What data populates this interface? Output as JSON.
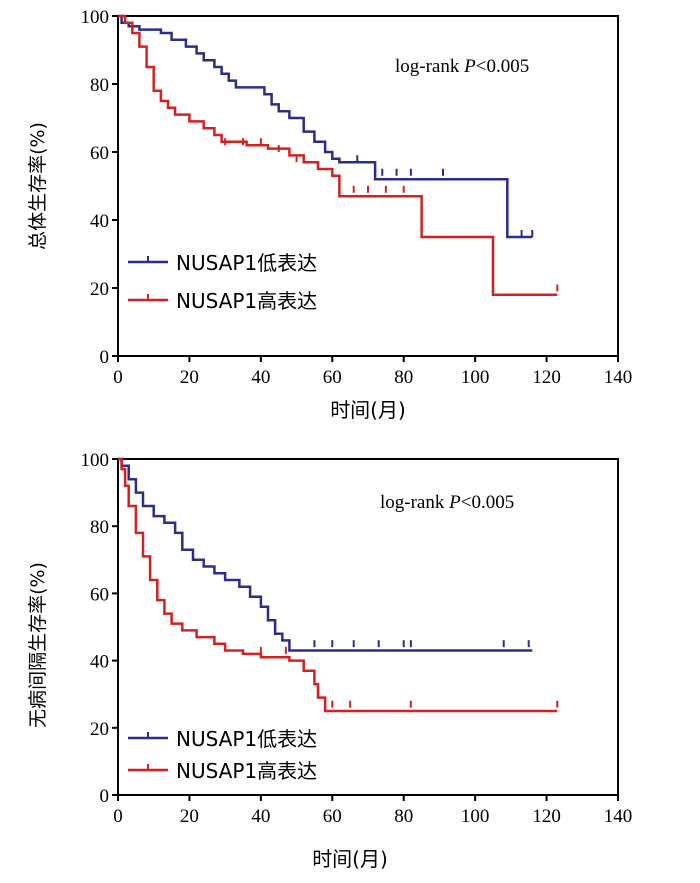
{
  "chart_data": [
    {
      "type": "line",
      "subtype": "kaplan-meier",
      "title": "",
      "xlabel": "时间(月)",
      "ylabel": "总体生存率(%)",
      "xlim": [
        0,
        140
      ],
      "ylim": [
        0,
        100
      ],
      "xticks": [
        0,
        20,
        40,
        60,
        80,
        100,
        120,
        140
      ],
      "yticks": [
        0,
        20,
        40,
        60,
        80,
        100
      ],
      "annotation": {
        "prefix": "log-rank ",
        "italic": "P",
        "suffix": "<0.005"
      },
      "legend_position": "bottom-left",
      "series": [
        {
          "name": "NUSAP1低表达",
          "color": "#2b2d8c",
          "steps": [
            [
              0,
              100
            ],
            [
              1,
              98
            ],
            [
              3,
              97
            ],
            [
              6,
              96
            ],
            [
              8,
              96
            ],
            [
              12,
              95
            ],
            [
              15,
              93
            ],
            [
              19,
              91
            ],
            [
              22,
              89
            ],
            [
              24,
              87
            ],
            [
              27,
              85
            ],
            [
              29,
              83
            ],
            [
              31,
              81
            ],
            [
              33,
              79
            ],
            [
              39,
              79
            ],
            [
              41,
              77
            ],
            [
              43,
              74
            ],
            [
              45,
              72
            ],
            [
              48,
              70
            ],
            [
              52,
              66
            ],
            [
              55,
              63
            ],
            [
              58,
              60
            ],
            [
              60,
              58
            ],
            [
              62,
              57
            ],
            [
              72,
              52
            ],
            [
              109,
              52
            ],
            [
              109,
              35
            ],
            [
              116,
              35
            ]
          ],
          "censors": [
            [
              67,
              57
            ],
            [
              72,
              53
            ],
            [
              74,
              53
            ],
            [
              78,
              53
            ],
            [
              82,
              53
            ],
            [
              91,
              53
            ],
            [
              113,
              35
            ],
            [
              116,
              35
            ]
          ]
        },
        {
          "name": "NUSAP1高表达",
          "color": "#d42020",
          "steps": [
            [
              0,
              100
            ],
            [
              2,
              98
            ],
            [
              4,
              95
            ],
            [
              6,
              91
            ],
            [
              8,
              85
            ],
            [
              10,
              78
            ],
            [
              12,
              75
            ],
            [
              14,
              73
            ],
            [
              16,
              71
            ],
            [
              20,
              69
            ],
            [
              24,
              67
            ],
            [
              27,
              65
            ],
            [
              29,
              63
            ],
            [
              36,
              62
            ],
            [
              42,
              61
            ],
            [
              48,
              59
            ],
            [
              52,
              57
            ],
            [
              56,
              55
            ],
            [
              60,
              53
            ],
            [
              62,
              47
            ],
            [
              85,
              47
            ],
            [
              85,
              35
            ],
            [
              105,
              35
            ],
            [
              105,
              18
            ],
            [
              123,
              18
            ]
          ],
          "censors": [
            [
              30,
              62
            ],
            [
              35,
              62
            ],
            [
              40,
              62
            ],
            [
              45,
              60
            ],
            [
              50,
              57
            ],
            [
              66,
              48
            ],
            [
              70,
              48
            ],
            [
              75,
              48
            ],
            [
              80,
              48
            ],
            [
              123,
              19
            ]
          ]
        }
      ]
    },
    {
      "type": "line",
      "subtype": "kaplan-meier",
      "title": "",
      "xlabel": "时间(月)",
      "ylabel": "无病间隔生存率(%)",
      "xlim": [
        0,
        140
      ],
      "ylim": [
        0,
        100
      ],
      "xticks": [
        0,
        20,
        40,
        60,
        80,
        100,
        120,
        140
      ],
      "yticks": [
        0,
        20,
        40,
        60,
        80,
        100
      ],
      "annotation": {
        "prefix": "log-rank ",
        "italic": "P",
        "suffix": "<0.005"
      },
      "legend_position": "bottom-left",
      "series": [
        {
          "name": "NUSAP1低表达",
          "color": "#2b2d8c",
          "steps": [
            [
              0,
              100
            ],
            [
              1,
              98
            ],
            [
              3,
              94
            ],
            [
              5,
              90
            ],
            [
              7,
              86
            ],
            [
              10,
              83
            ],
            [
              13,
              81
            ],
            [
              16,
              78
            ],
            [
              18,
              73
            ],
            [
              21,
              70
            ],
            [
              24,
              68
            ],
            [
              27,
              66
            ],
            [
              30,
              64
            ],
            [
              34,
              62
            ],
            [
              37,
              59
            ],
            [
              40,
              56
            ],
            [
              42,
              52
            ],
            [
              44,
              48
            ],
            [
              46,
              46
            ],
            [
              48,
              43
            ],
            [
              116,
              43
            ]
          ],
          "censors": [
            [
              55,
              44
            ],
            [
              60,
              44
            ],
            [
              66,
              44
            ],
            [
              73,
              44
            ],
            [
              80,
              44
            ],
            [
              82,
              44
            ],
            [
              108,
              44
            ],
            [
              115,
              44
            ]
          ]
        },
        {
          "name": "NUSAP1高表达",
          "color": "#d42020",
          "steps": [
            [
              0,
              100
            ],
            [
              1,
              97
            ],
            [
              2,
              92
            ],
            [
              3,
              86
            ],
            [
              5,
              78
            ],
            [
              7,
              71
            ],
            [
              9,
              64
            ],
            [
              11,
              58
            ],
            [
              13,
              54
            ],
            [
              15,
              51
            ],
            [
              18,
              49
            ],
            [
              22,
              47
            ],
            [
              27,
              45
            ],
            [
              30,
              43
            ],
            [
              35,
              42
            ],
            [
              40,
              41
            ],
            [
              48,
              40
            ],
            [
              52,
              37
            ],
            [
              55,
              33
            ],
            [
              56,
              29
            ],
            [
              58,
              25
            ],
            [
              123,
              25
            ]
          ],
          "censors": [
            [
              40,
              42
            ],
            [
              47,
              42
            ],
            [
              60,
              26
            ],
            [
              65,
              26
            ],
            [
              82,
              26
            ],
            [
              123,
              26
            ]
          ]
        }
      ]
    }
  ]
}
